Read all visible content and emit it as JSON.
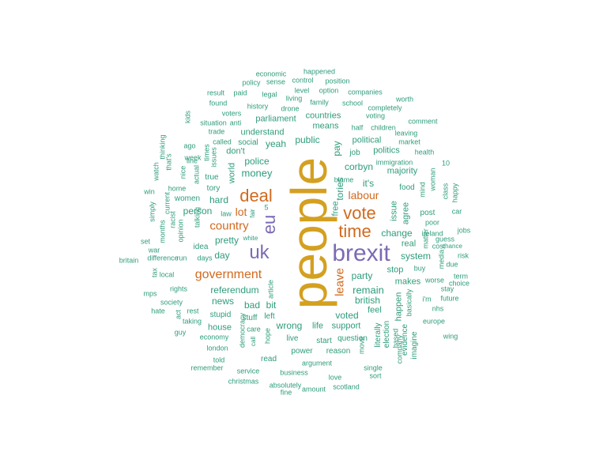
{
  "palette": {
    "gold": "#d4a020",
    "orange": "#d2691e",
    "purple": "#7b6bb5",
    "teal": "#2e9c7c"
  },
  "words": [
    {
      "t": "people",
      "c": "gold"
    },
    {
      "t": "brexit",
      "c": "purple"
    },
    {
      "t": "deal",
      "c": "orange"
    },
    {
      "t": "vote",
      "c": "orange"
    },
    {
      "t": "time",
      "c": "orange"
    },
    {
      "t": "uk",
      "c": "purple"
    },
    {
      "t": "eu",
      "c": "purple"
    },
    {
      "t": "government",
      "c": "orange"
    },
    {
      "t": "country",
      "c": "orange"
    },
    {
      "t": "labour",
      "c": "orange"
    },
    {
      "t": "leave",
      "c": "orange"
    },
    {
      "t": "lot",
      "c": "orange"
    },
    {
      "t": "money",
      "c": "teal"
    },
    {
      "t": "referendum",
      "c": "teal"
    },
    {
      "t": "remain",
      "c": "teal"
    },
    {
      "t": "party",
      "c": "teal"
    },
    {
      "t": "corbyn",
      "c": "teal"
    },
    {
      "t": "public",
      "c": "teal"
    },
    {
      "t": "yeah",
      "c": "teal"
    },
    {
      "t": "it's",
      "c": "teal"
    },
    {
      "t": "tories",
      "c": "teal"
    },
    {
      "t": "pay",
      "c": "teal"
    },
    {
      "t": "person",
      "c": "teal"
    },
    {
      "t": "hard",
      "c": "teal"
    },
    {
      "t": "pretty",
      "c": "teal"
    },
    {
      "t": "police",
      "c": "teal"
    },
    {
      "t": "world",
      "c": "teal"
    },
    {
      "t": "change",
      "c": "teal"
    },
    {
      "t": "system",
      "c": "teal"
    },
    {
      "t": "issue",
      "c": "teal"
    },
    {
      "t": "agree",
      "c": "teal"
    },
    {
      "t": "bad",
      "c": "teal"
    },
    {
      "t": "bit",
      "c": "teal"
    },
    {
      "t": "british",
      "c": "teal"
    },
    {
      "t": "news",
      "c": "teal"
    },
    {
      "t": "day",
      "c": "teal"
    },
    {
      "t": "voted",
      "c": "teal"
    },
    {
      "t": "political",
      "c": "teal"
    },
    {
      "t": "politics",
      "c": "teal"
    },
    {
      "t": "majority",
      "c": "teal"
    },
    {
      "t": "wrong",
      "c": "teal"
    },
    {
      "t": "life",
      "c": "teal"
    },
    {
      "t": "support",
      "c": "teal"
    },
    {
      "t": "makes",
      "c": "teal"
    },
    {
      "t": "stop",
      "c": "teal"
    },
    {
      "t": "understand",
      "c": "teal"
    },
    {
      "t": "parliament",
      "c": "teal"
    },
    {
      "t": "countries",
      "c": "teal"
    },
    {
      "t": "means",
      "c": "teal"
    },
    {
      "t": "free",
      "c": "teal"
    },
    {
      "t": "feel",
      "c": "teal"
    },
    {
      "t": "happen",
      "c": "teal"
    },
    {
      "t": "real",
      "c": "teal"
    },
    {
      "t": "food",
      "c": "teal"
    },
    {
      "t": "job",
      "c": "teal"
    },
    {
      "t": "don't",
      "c": "teal"
    },
    {
      "t": "social",
      "c": "teal"
    },
    {
      "t": "women",
      "c": "teal"
    },
    {
      "t": "tory",
      "c": "teal"
    },
    {
      "t": "true",
      "c": "teal"
    },
    {
      "t": "idea",
      "c": "teal"
    },
    {
      "t": "house",
      "c": "teal"
    },
    {
      "t": "stupid",
      "c": "teal"
    },
    {
      "t": "stuff",
      "c": "teal"
    },
    {
      "t": "left",
      "c": "teal"
    },
    {
      "t": "live",
      "c": "teal"
    },
    {
      "t": "power",
      "c": "teal"
    },
    {
      "t": "read",
      "c": "teal"
    },
    {
      "t": "question",
      "c": "teal"
    },
    {
      "t": "start",
      "c": "teal"
    },
    {
      "t": "reason",
      "c": "teal"
    },
    {
      "t": "literally",
      "c": "teal"
    },
    {
      "t": "election",
      "c": "teal"
    },
    {
      "t": "based",
      "c": "teal"
    },
    {
      "t": "evidence",
      "c": "teal"
    },
    {
      "t": "imagine",
      "c": "teal"
    },
    {
      "t": "basically",
      "c": "teal"
    },
    {
      "t": "i'm",
      "c": "teal"
    },
    {
      "t": "post",
      "c": "teal"
    },
    {
      "t": "worse",
      "c": "teal"
    },
    {
      "t": "buy",
      "c": "teal"
    },
    {
      "t": "poor",
      "c": "teal"
    },
    {
      "t": "car",
      "c": "teal"
    },
    {
      "t": "guess",
      "c": "teal"
    },
    {
      "t": "cost",
      "c": "teal"
    },
    {
      "t": "due",
      "c": "teal"
    },
    {
      "t": "jobs",
      "c": "teal"
    },
    {
      "t": "chance",
      "c": "teal"
    },
    {
      "t": "risk",
      "c": "teal"
    },
    {
      "t": "happy",
      "c": "teal"
    },
    {
      "t": "class",
      "c": "teal"
    },
    {
      "t": "woman",
      "c": "teal"
    },
    {
      "t": "mind",
      "c": "teal"
    },
    {
      "t": "matter",
      "c": "teal"
    },
    {
      "t": "media",
      "c": "teal"
    },
    {
      "t": "ireland",
      "c": "teal"
    },
    {
      "t": "10",
      "c": "teal"
    },
    {
      "t": "immigration",
      "c": "teal"
    },
    {
      "t": "health",
      "c": "teal"
    },
    {
      "t": "leaving",
      "c": "teal"
    },
    {
      "t": "market",
      "c": "teal"
    },
    {
      "t": "comment",
      "c": "teal"
    },
    {
      "t": "children",
      "c": "teal"
    },
    {
      "t": "half",
      "c": "teal"
    },
    {
      "t": "voting",
      "c": "teal"
    },
    {
      "t": "completely",
      "c": "teal"
    },
    {
      "t": "worth",
      "c": "teal"
    },
    {
      "t": "companies",
      "c": "teal"
    },
    {
      "t": "school",
      "c": "teal"
    },
    {
      "t": "position",
      "c": "teal"
    },
    {
      "t": "happened",
      "c": "teal"
    },
    {
      "t": "economic",
      "c": "teal"
    },
    {
      "t": "control",
      "c": "teal"
    },
    {
      "t": "level",
      "c": "teal"
    },
    {
      "t": "option",
      "c": "teal"
    },
    {
      "t": "sense",
      "c": "teal"
    },
    {
      "t": "policy",
      "c": "teal"
    },
    {
      "t": "paid",
      "c": "teal"
    },
    {
      "t": "legal",
      "c": "teal"
    },
    {
      "t": "living",
      "c": "teal"
    },
    {
      "t": "family",
      "c": "teal"
    },
    {
      "t": "drone",
      "c": "teal"
    },
    {
      "t": "result",
      "c": "teal"
    },
    {
      "t": "found",
      "c": "teal"
    },
    {
      "t": "history",
      "c": "teal"
    },
    {
      "t": "voters",
      "c": "teal"
    },
    {
      "t": "situation",
      "c": "teal"
    },
    {
      "t": "anti",
      "c": "teal"
    },
    {
      "t": "trade",
      "c": "teal"
    },
    {
      "t": "called",
      "c": "teal"
    },
    {
      "t": "times",
      "c": "teal"
    },
    {
      "t": "issues",
      "c": "teal"
    },
    {
      "t": "ago",
      "c": "teal"
    },
    {
      "t": "week",
      "c": "teal"
    },
    {
      "t": "line",
      "c": "teal"
    },
    {
      "t": "kids",
      "c": "teal"
    },
    {
      "t": "thinking",
      "c": "teal"
    },
    {
      "t": "that's",
      "c": "teal"
    },
    {
      "t": "watch",
      "c": "teal"
    },
    {
      "t": "nice",
      "c": "teal"
    },
    {
      "t": "actual",
      "c": "teal"
    },
    {
      "t": "home",
      "c": "teal"
    },
    {
      "t": "current",
      "c": "teal"
    },
    {
      "t": "win",
      "c": "teal"
    },
    {
      "t": "racist",
      "c": "teal"
    },
    {
      "t": "simply",
      "c": "teal"
    },
    {
      "t": "months",
      "c": "teal"
    },
    {
      "t": "opinion",
      "c": "teal"
    },
    {
      "t": "talking",
      "c": "teal"
    },
    {
      "t": "law",
      "c": "teal"
    },
    {
      "t": "fair",
      "c": "teal"
    },
    {
      "t": "5",
      "c": "teal"
    },
    {
      "t": "white",
      "c": "teal"
    },
    {
      "t": "set",
      "c": "teal"
    },
    {
      "t": "war",
      "c": "teal"
    },
    {
      "t": "britain",
      "c": "teal"
    },
    {
      "t": "difference",
      "c": "teal"
    },
    {
      "t": "run",
      "c": "teal"
    },
    {
      "t": "days",
      "c": "teal"
    },
    {
      "t": "tax",
      "c": "teal"
    },
    {
      "t": "local",
      "c": "teal"
    },
    {
      "t": "mps",
      "c": "teal"
    },
    {
      "t": "rights",
      "c": "teal"
    },
    {
      "t": "society",
      "c": "teal"
    },
    {
      "t": "hate",
      "c": "teal"
    },
    {
      "t": "act",
      "c": "teal"
    },
    {
      "t": "rest",
      "c": "teal"
    },
    {
      "t": "taking",
      "c": "teal"
    },
    {
      "t": "guy",
      "c": "teal"
    },
    {
      "t": "economy",
      "c": "teal"
    },
    {
      "t": "london",
      "c": "teal"
    },
    {
      "t": "democracy",
      "c": "teal"
    },
    {
      "t": "care",
      "c": "teal"
    },
    {
      "t": "call",
      "c": "teal"
    },
    {
      "t": "hope",
      "c": "teal"
    },
    {
      "t": "article",
      "c": "teal"
    },
    {
      "t": "told",
      "c": "teal"
    },
    {
      "t": "remember",
      "c": "teal"
    },
    {
      "t": "service",
      "c": "teal"
    },
    {
      "t": "christmas",
      "c": "teal"
    },
    {
      "t": "business",
      "c": "teal"
    },
    {
      "t": "argument",
      "c": "teal"
    },
    {
      "t": "absolutely",
      "c": "teal"
    },
    {
      "t": "fine",
      "c": "teal"
    },
    {
      "t": "amount",
      "c": "teal"
    },
    {
      "t": "love",
      "c": "teal"
    },
    {
      "t": "scotland",
      "c": "teal"
    },
    {
      "t": "move",
      "c": "teal"
    },
    {
      "t": "single",
      "c": "teal"
    },
    {
      "t": "sort",
      "c": "teal"
    },
    {
      "t": "company",
      "c": "teal"
    },
    {
      "t": "nhs",
      "c": "teal"
    },
    {
      "t": "europe",
      "c": "teal"
    },
    {
      "t": "wing",
      "c": "teal"
    },
    {
      "t": "stay",
      "c": "teal"
    },
    {
      "t": "future",
      "c": "teal"
    },
    {
      "t": "term",
      "c": "teal"
    },
    {
      "t": "choice",
      "c": "teal"
    },
    {
      "t": "blame",
      "c": "teal"
    },
    {
      "t": "50",
      "c": "teal"
    }
  ]
}
